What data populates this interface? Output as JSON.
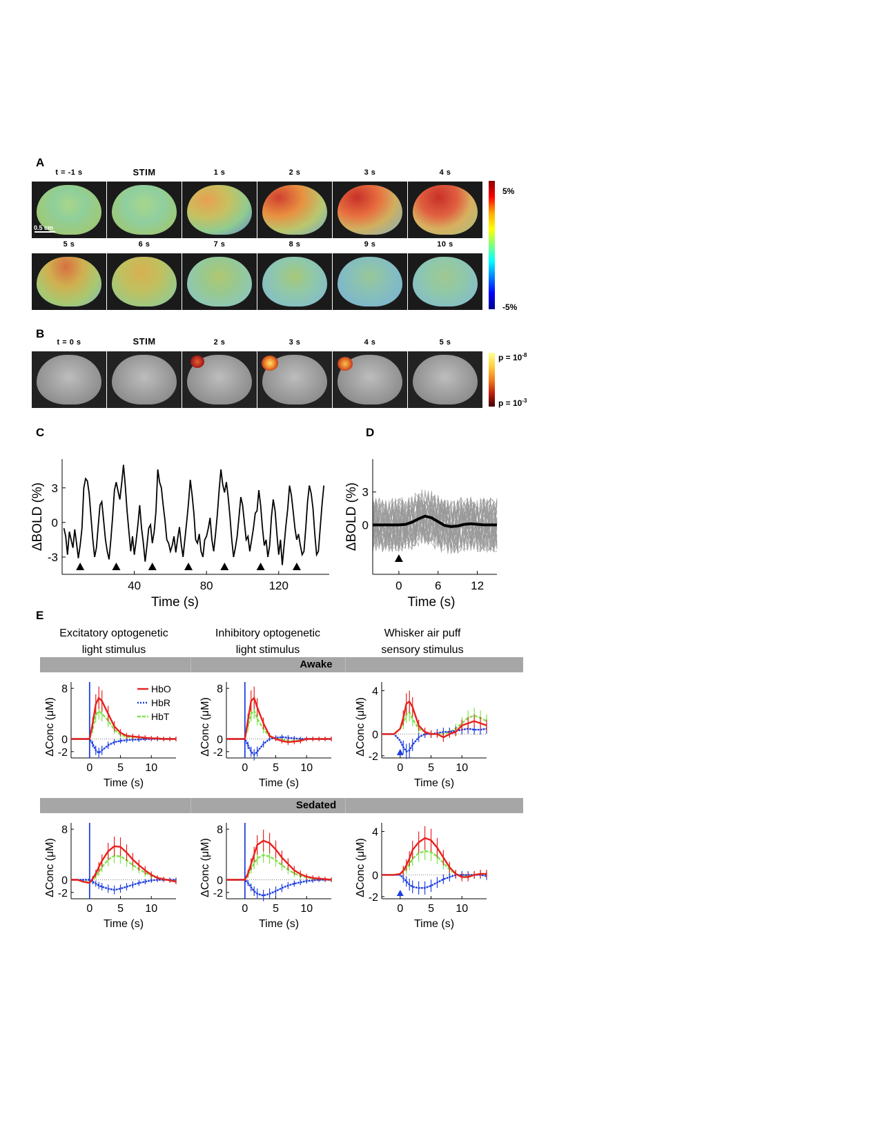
{
  "panels": {
    "A": "A",
    "B": "B",
    "C": "C",
    "D": "D",
    "E": "E"
  },
  "panelA": {
    "row1_labels": [
      "t = -1 s",
      "STIM",
      "1 s",
      "2 s",
      "3 s",
      "4 s"
    ],
    "row2_labels": [
      "5 s",
      "6 s",
      "7 s",
      "8 s",
      "9 s",
      "10 s"
    ],
    "scale_bar": "0.5 cm",
    "colorbar_max": "5%",
    "colorbar_min": "-5%",
    "colorbar_colors": [
      "#8b0000",
      "#ff0000",
      "#ffaa00",
      "#ffff00",
      "#80ff80",
      "#00ffff",
      "#0080ff",
      "#0000ff",
      "#00008b"
    ]
  },
  "panelB": {
    "labels": [
      "t = 0 s",
      "STIM",
      "2 s",
      "3 s",
      "4 s",
      "5 s"
    ],
    "p_high_base": "p = 10",
    "p_high_exp": "-8",
    "p_low_base": "p = 10",
    "p_low_exp": "-3"
  },
  "chart_data": [
    {
      "panel": "C",
      "type": "line",
      "xlabel": "Time (s)",
      "ylabel": "ΔBOLD (%)",
      "xticks": [
        40,
        80,
        120
      ],
      "yticks": [
        3,
        0,
        -3
      ],
      "xlim": [
        0,
        148
      ],
      "ylim": [
        -4.5,
        5.5
      ],
      "stimulus_times": [
        10,
        30,
        50,
        70,
        90,
        110,
        130
      ],
      "series": [
        {
          "color": "#000000",
          "x": [
            1,
            2,
            3,
            4,
            5,
            6,
            7,
            8,
            9,
            10,
            11,
            12,
            13,
            14,
            15,
            16,
            17,
            18,
            19,
            20,
            21,
            22,
            23,
            24,
            25,
            26,
            27,
            28,
            29,
            30,
            31,
            32,
            33,
            34,
            35,
            36,
            37,
            38,
            39,
            40,
            41,
            42,
            43,
            44,
            45,
            46,
            47,
            48,
            49,
            50,
            51,
            52,
            53,
            54,
            55,
            56,
            57,
            58,
            59,
            60,
            61,
            62,
            63,
            64,
            65,
            66,
            67,
            68,
            69,
            70,
            71,
            72,
            73,
            74,
            75,
            76,
            77,
            78,
            79,
            80,
            81,
            82,
            83,
            84,
            85,
            86,
            87,
            88,
            89,
            90,
            91,
            92,
            93,
            94,
            95,
            96,
            97,
            98,
            99,
            100,
            101,
            102,
            103,
            104,
            105,
            106,
            107,
            108,
            109,
            110,
            111,
            112,
            113,
            114,
            115,
            116,
            117,
            118,
            119,
            120,
            121,
            122,
            123,
            124,
            125,
            126,
            127,
            128,
            129,
            130,
            131,
            132,
            133,
            134,
            135,
            136,
            137,
            138,
            139,
            140,
            141,
            142,
            143,
            144,
            145
          ],
          "y": [
            -0.5,
            -1.2,
            -2.8,
            -0.8,
            -1.5,
            -2.2,
            -0.6,
            -1.8,
            -3.1,
            -2.0,
            -0.5,
            3.0,
            3.8,
            3.6,
            2.5,
            0.5,
            -1.5,
            -3.0,
            -2.2,
            -0.3,
            1.5,
            1.8,
            0.2,
            -1.5,
            -2.5,
            -3.2,
            -1.5,
            0.5,
            2.8,
            3.5,
            2.7,
            2.0,
            3.4,
            5.0,
            3.2,
            1.0,
            -0.8,
            -2.5,
            -1.2,
            -2.8,
            -1.6,
            -0.2,
            1.5,
            -0.5,
            -1.8,
            -3.4,
            -2.0,
            -0.5,
            -0.2,
            -1.8,
            -0.8,
            1.0,
            4.6,
            3.5,
            3.0,
            1.5,
            0.2,
            -1.5,
            -1.8,
            -2.5,
            -2.0,
            -1.2,
            -2.6,
            -1.4,
            -0.4,
            -1.9,
            -3.0,
            -1.5,
            0.0,
            1.6,
            3.7,
            2.4,
            0.8,
            -1.5,
            -1.8,
            -1.0,
            -2.5,
            -3.0,
            -1.5,
            -1.2,
            -0.5,
            0.4,
            -1.5,
            -2.5,
            -1.0,
            0.7,
            2.8,
            4.6,
            3.3,
            2.6,
            3.5,
            2.2,
            0.5,
            -1.5,
            -3.0,
            -2.2,
            -1.2,
            0.5,
            2.2,
            1.5,
            0.0,
            -1.5,
            -1.2,
            -2.5,
            -1.5,
            -0.5,
            0.8,
            1.0,
            2.8,
            1.5,
            -0.5,
            -2.0,
            -1.5,
            -3.0,
            -2.0,
            0.5,
            2.0,
            1.0,
            -1.0,
            -2.8,
            -1.5,
            -3.7,
            -2.0,
            -0.3,
            1.2,
            3.2,
            2.4,
            1.0,
            -0.5,
            -1.5,
            -1.0,
            -2.0,
            -2.8,
            -2.5,
            -0.5,
            1.8,
            3.2,
            2.5,
            1.2,
            -1.0,
            -2.8,
            -2.5,
            -0.5,
            1.5,
            3.2
          ]
        }
      ]
    },
    {
      "panel": "D",
      "type": "line",
      "xlabel": "Time (s)",
      "ylabel": "ΔBOLD (%)",
      "xticks": [
        0,
        6,
        12
      ],
      "yticks": [
        3,
        0
      ],
      "xlim": [
        -4,
        15
      ],
      "ylim": [
        -4.5,
        6
      ],
      "stimulus_times": [
        0
      ],
      "mean": {
        "color": "#000000",
        "x": [
          -4,
          -3,
          -2,
          -1,
          0,
          1,
          2,
          3,
          4,
          5,
          6,
          7,
          8,
          9,
          10,
          11,
          12,
          13,
          14,
          15
        ],
        "y": [
          0,
          0,
          0,
          0,
          0,
          0.05,
          0.25,
          0.55,
          0.8,
          0.65,
          0.3,
          -0.05,
          -0.15,
          -0.1,
          0.05,
          0.1,
          0.05,
          0,
          0,
          0
        ]
      },
      "trials_color": "#999999",
      "trial_count": 40
    }
  ],
  "panelE": {
    "column_titles": [
      [
        "Excitatory optogenetic",
        "light stimulus"
      ],
      [
        "Inhibitory optogenetic",
        "light stimulus"
      ],
      [
        "Whisker air puff",
        "sensory stimulus"
      ]
    ],
    "rows": [
      "Awake",
      "Sedated"
    ],
    "xlabel": "Time (s)",
    "ylabel": "ΔConc (μM)",
    "xticks": [
      0,
      5,
      10
    ],
    "legend": [
      {
        "name": "HbO",
        "color": "#e8201e"
      },
      {
        "name": "HbR",
        "color": "#1f3fe0"
      },
      {
        "name": "HbT",
        "color": "#7de24a"
      }
    ],
    "charts": [
      {
        "row": "Awake",
        "col": 0,
        "type": "line",
        "stim": "line",
        "yticks": [
          8,
          0,
          -2
        ],
        "ylim": [
          -3,
          9
        ],
        "xlim": [
          -3,
          14
        ],
        "t": [
          -3,
          -2,
          -1,
          0,
          0.5,
          1,
          1.5,
          2,
          3,
          4,
          5,
          6,
          7,
          8,
          9,
          10,
          11,
          12,
          13,
          14
        ],
        "HbO": [
          0,
          0,
          0,
          0,
          2.5,
          5.5,
          6.5,
          6.0,
          4.0,
          2.0,
          1.0,
          0.5,
          0.4,
          0.3,
          0.2,
          0.1,
          0.1,
          0,
          0,
          0
        ],
        "HbR": [
          0,
          0,
          0,
          0,
          -0.8,
          -1.8,
          -2.2,
          -1.8,
          -1.0,
          -0.5,
          -0.3,
          -0.2,
          -0.1,
          -0.1,
          0,
          0,
          0,
          0,
          0,
          0
        ],
        "HbT": [
          0,
          0,
          0,
          0,
          1.7,
          3.8,
          4.4,
          4.0,
          2.9,
          1.5,
          0.7,
          0.3,
          0.3,
          0.2,
          0.2,
          0.1,
          0.1,
          0,
          0,
          0
        ]
      },
      {
        "row": "Awake",
        "col": 1,
        "type": "line",
        "stim": "line",
        "yticks": [
          8,
          0,
          -2
        ],
        "ylim": [
          -3,
          9
        ],
        "xlim": [
          -3,
          14
        ],
        "t": [
          -3,
          -2,
          -1,
          0,
          0.5,
          1,
          1.5,
          2,
          3,
          4,
          5,
          6,
          7,
          8,
          9,
          10,
          11,
          12,
          13,
          14
        ],
        "HbO": [
          0,
          0,
          0,
          0,
          3.0,
          6.0,
          6.5,
          5.0,
          2.5,
          0.5,
          0,
          -0.3,
          -0.5,
          -0.4,
          -0.3,
          0,
          0,
          0,
          0,
          0
        ],
        "HbR": [
          0,
          0,
          0,
          0,
          -1.0,
          -2.0,
          -2.5,
          -2.0,
          -0.8,
          0,
          0.2,
          0.3,
          0.2,
          0.1,
          0,
          0,
          0,
          0,
          0,
          0
        ],
        "HbT": [
          0,
          0,
          0,
          0,
          2.0,
          4.0,
          4.5,
          3.2,
          1.6,
          0.4,
          0.1,
          -0.1,
          -0.3,
          -0.3,
          -0.2,
          0,
          0,
          0,
          0,
          0
        ]
      },
      {
        "row": "Awake",
        "col": 2,
        "type": "line",
        "stim": "triangle",
        "yticks": [
          4,
          0,
          -2
        ],
        "ylim": [
          -2.2,
          4.8
        ],
        "xlim": [
          -3,
          14
        ],
        "t": [
          -3,
          -2,
          -1,
          0,
          0.5,
          1,
          1.5,
          2,
          3,
          4,
          5,
          6,
          7,
          8,
          9,
          10,
          11,
          12,
          13,
          14
        ],
        "HbO": [
          0,
          0,
          0,
          0.5,
          1.5,
          2.8,
          3.0,
          2.5,
          0.8,
          0.2,
          0,
          0,
          -0.3,
          0,
          0.2,
          0.8,
          1.0,
          1.2,
          1.0,
          0.8
        ],
        "HbR": [
          0,
          0,
          0,
          -0.6,
          -1.2,
          -1.6,
          -1.5,
          -1.0,
          -0.3,
          0,
          0,
          0.1,
          0.2,
          0.2,
          0.3,
          0.4,
          0.5,
          0.4,
          0.4,
          0.5
        ],
        "HbT": [
          0,
          0,
          0,
          0.5,
          1.0,
          1.8,
          2.0,
          1.4,
          0.5,
          0.2,
          0,
          0,
          0,
          0.2,
          0.5,
          1.0,
          1.5,
          1.7,
          1.5,
          1.2
        ]
      },
      {
        "row": "Sedated",
        "col": 0,
        "type": "line",
        "stim": "line",
        "yticks": [
          8,
          0,
          -2
        ],
        "ylim": [
          -3,
          9
        ],
        "xlim": [
          -3,
          14
        ],
        "t": [
          -3,
          -2,
          -1,
          0,
          0.5,
          1,
          1.5,
          2,
          3,
          4,
          5,
          6,
          7,
          8,
          9,
          10,
          11,
          12,
          13,
          14
        ],
        "HbO": [
          0,
          0,
          -0.3,
          -0.5,
          0.2,
          1.0,
          2.0,
          3.0,
          4.5,
          5.3,
          5.2,
          4.3,
          3.2,
          2.3,
          1.5,
          0.8,
          0.3,
          0.1,
          -0.1,
          -0.3
        ],
        "HbR": [
          0,
          0,
          0,
          0,
          -0.3,
          -0.6,
          -0.9,
          -1.1,
          -1.4,
          -1.6,
          -1.4,
          -1.1,
          -0.8,
          -0.5,
          -0.3,
          -0.1,
          0,
          0,
          0,
          0
        ],
        "HbT": [
          0,
          0,
          -0.3,
          -0.4,
          0,
          0.6,
          1.2,
          2.0,
          3.2,
          3.8,
          3.7,
          3.1,
          2.3,
          1.7,
          1.1,
          0.6,
          0.3,
          0.1,
          -0.1,
          -0.2
        ]
      },
      {
        "row": "Sedated",
        "col": 1,
        "type": "line",
        "stim": "line",
        "yticks": [
          8,
          0,
          -2
        ],
        "ylim": [
          -3,
          9
        ],
        "xlim": [
          -3,
          14
        ],
        "t": [
          -3,
          -2,
          -1,
          0,
          0.5,
          1,
          1.5,
          2,
          3,
          4,
          5,
          6,
          7,
          8,
          9,
          10,
          11,
          12,
          13,
          14
        ],
        "HbO": [
          0,
          0,
          0,
          0,
          1.0,
          2.5,
          4.0,
          5.5,
          6.2,
          5.8,
          4.8,
          3.5,
          2.5,
          1.5,
          0.9,
          0.5,
          0.3,
          0.2,
          0.1,
          0
        ],
        "HbR": [
          0,
          0,
          0,
          0,
          -0.5,
          -1.2,
          -1.8,
          -2.2,
          -2.5,
          -2.2,
          -1.8,
          -1.3,
          -0.9,
          -0.6,
          -0.4,
          -0.2,
          -0.1,
          0,
          0,
          0
        ],
        "HbT": [
          0,
          0,
          0,
          0,
          0.8,
          1.7,
          2.6,
          3.4,
          3.9,
          3.7,
          3.1,
          2.3,
          1.6,
          1.0,
          0.6,
          0.4,
          0.2,
          0.1,
          0,
          0
        ]
      },
      {
        "row": "Sedated",
        "col": 2,
        "type": "line",
        "stim": "triangle",
        "yticks": [
          4,
          0,
          -2
        ],
        "ylim": [
          -2.2,
          4.8
        ],
        "xlim": [
          -3,
          14
        ],
        "t": [
          -3,
          -2,
          -1,
          0,
          0.5,
          1,
          1.5,
          2,
          3,
          4,
          5,
          6,
          7,
          8,
          9,
          10,
          11,
          12,
          13,
          14
        ],
        "HbO": [
          0,
          0,
          0,
          0.1,
          0.4,
          0.9,
          1.5,
          2.3,
          3.0,
          3.4,
          3.2,
          2.5,
          1.6,
          0.7,
          0.1,
          -0.2,
          -0.2,
          0,
          0.1,
          0.1
        ],
        "HbR": [
          0,
          0,
          0,
          0,
          -0.3,
          -0.6,
          -0.9,
          -1.1,
          -1.2,
          -1.2,
          -1.0,
          -0.7,
          -0.4,
          -0.2,
          0,
          0,
          0,
          0,
          0,
          -0.1
        ],
        "HbT": [
          0,
          0,
          0,
          0.1,
          0.3,
          0.6,
          1.0,
          1.5,
          2.0,
          2.2,
          2.1,
          1.7,
          1.1,
          0.5,
          0.1,
          -0.1,
          -0.1,
          0,
          0.1,
          0.1
        ]
      }
    ]
  }
}
